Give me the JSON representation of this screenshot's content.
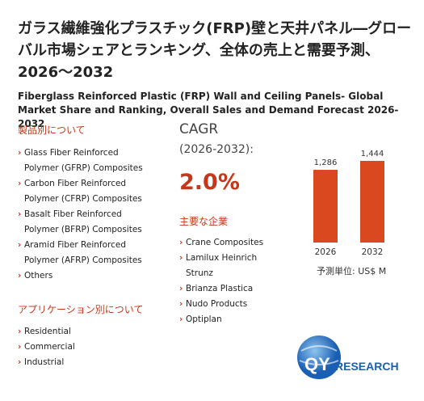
{
  "header": {
    "title": "ガラス繊維強化プラスチック(FRP)壁と天井パネル―グローバル市場シェアとランキング、全体の売上と需要予測、2026～2032",
    "subtitle": "Fiberglass Reinforced Plastic (FRP) Wall and Ceiling Panels- Global Market Share and Ranking, Overall Sales and Demand Forecast 2026-2032"
  },
  "products": {
    "heading": "製品別について",
    "items": [
      "Glass Fiber Reinforced Polymer (GFRP) Composites",
      "Carbon Fiber Reinforced Polymer (CFRP) Composites",
      "Basalt Fiber Reinforced Polymer (BFRP) Composites",
      "Aramid Fiber Reinforced Polymer (AFRP) Composites",
      "Others"
    ]
  },
  "applications": {
    "heading": "アプリケーション別について",
    "items": [
      "Residential",
      "Commercial",
      "Industrial"
    ]
  },
  "cagr": {
    "label": "CAGR",
    "period": "(2026-2032):",
    "value": "2.0%"
  },
  "companies": {
    "heading": "主要な企業",
    "items": [
      "Crane Composites",
      "Lamilux Heinrich Strunz",
      "Brianza Plastica",
      "Nudo Products",
      "Optiplan"
    ]
  },
  "chart_data": {
    "type": "bar",
    "categories": [
      "2026",
      "2032"
    ],
    "values": [
      1286,
      1444
    ],
    "value_labels": [
      "1,286",
      "1,444"
    ],
    "color": "#d9481f",
    "unit_label": "予測単位:  US$ M"
  },
  "logo": {
    "qy": "QY",
    "rest": "RESEARCH"
  }
}
